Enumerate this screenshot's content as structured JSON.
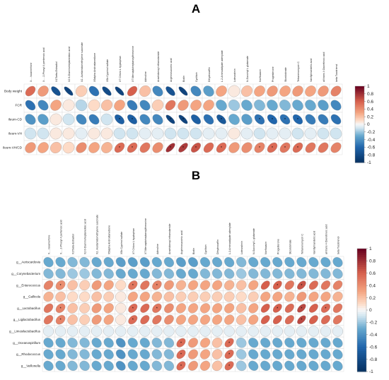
{
  "chart_data": [
    {
      "type": "heatmap",
      "panel_label": "A",
      "columns": [
        "X.....Isoamerfone",
        "X.....2-Phosyl 4 pentenoic acid",
        "X17beta-Estradiol",
        "X2 6-Diaminoheptanedioic acid",
        "X2..Acetamidomethylene succinate",
        "X5alpha Androstanedione",
        "X5b Cyprinol sulfate",
        "X7 Chloro L tryptophan",
        "X7 Mercaptoheptanoylthreonine",
        "Adinoline",
        "Arachidonoyl ethanolamide",
        "Argininosuccinic acid",
        "Biotin",
        "Cyclitoin",
        "Dihydrocaffin",
        "L.2-Aminoadipate adenylate",
        "Loteuralmin",
        "N-Succinyl L glutamate",
        "Norfloxacin",
        "Progesterone",
        "Stizolobinate",
        "Tetranenomycin C",
        "Vanillylmandelic acid",
        "all trans 4 Oxoretinoic acid",
        "beta Tocotrienol"
      ],
      "rows": [
        "Body weight",
        "FCR",
        "Ileum-CD",
        "Ileum-VH",
        "Ileum-VH/CD"
      ],
      "values": [
        [
          0.55,
          0.35,
          -0.75,
          -0.85,
          0.15,
          -0.55,
          -0.8,
          -0.85,
          0.6,
          0.2,
          -0.45,
          -0.75,
          -0.85,
          -0.45,
          -0.35,
          0.3,
          0.05,
          0.2,
          0.3,
          0.35,
          0.3,
          0.35,
          0.3,
          0.35,
          0.45
        ],
        [
          -0.55,
          -0.45,
          0.3,
          0.05,
          -0.15,
          0.1,
          0.2,
          0.3,
          -0.5,
          -0.45,
          0.15,
          0.5,
          0.35,
          0.3,
          0.3,
          -0.3,
          -0.2,
          -0.3,
          -0.25,
          -0.3,
          -0.25,
          -0.3,
          -0.3,
          -0.35,
          -0.45
        ],
        [
          -0.4,
          -0.35,
          0.05,
          -0.1,
          -0.45,
          -0.5,
          -0.1,
          -0.65,
          -0.65,
          -0.45,
          -0.45,
          -0.85,
          -0.85,
          -0.65,
          -0.55,
          -0.7,
          -0.3,
          -0.35,
          -0.55,
          -0.6,
          -0.55,
          -0.6,
          -0.5,
          -0.5,
          -0.55
        ],
        [
          -0.1,
          -0.1,
          0.05,
          0.05,
          -0.05,
          0.05,
          0.05,
          -0.1,
          -0.1,
          -0.05,
          -0.05,
          -0.1,
          -0.1,
          -0.1,
          -0.05,
          -0.05,
          0.05,
          -0.05,
          -0.1,
          -0.05,
          -0.05,
          -0.1,
          -0.05,
          -0.1,
          -0.1
        ],
        [
          0.35,
          0.3,
          0.2,
          0.1,
          0.4,
          0.3,
          0.25,
          0.55,
          0.55,
          0.5,
          0.4,
          0.8,
          0.75,
          0.65,
          0.55,
          0.55,
          0.35,
          0.4,
          0.45,
          0.55,
          0.5,
          0.55,
          0.5,
          0.5,
          0.45
        ]
      ],
      "significant": [
        [
          0,
          0,
          0,
          0,
          0,
          0,
          0,
          0,
          0,
          0,
          0,
          0,
          0,
          0,
          0,
          0,
          0,
          0,
          0,
          0,
          0,
          0,
          0,
          0,
          0
        ],
        [
          0,
          0,
          0,
          0,
          0,
          0,
          0,
          0,
          0,
          0,
          0,
          0,
          0,
          0,
          0,
          0,
          0,
          0,
          0,
          0,
          0,
          0,
          0,
          0,
          0
        ],
        [
          0,
          0,
          0,
          0,
          0,
          0,
          0,
          1,
          1,
          0,
          0,
          1,
          1,
          0,
          0,
          1,
          0,
          0,
          1,
          1,
          1,
          1,
          0,
          0,
          0
        ],
        [
          0,
          0,
          0,
          0,
          0,
          0,
          0,
          0,
          0,
          0,
          0,
          0,
          0,
          0,
          0,
          0,
          0,
          0,
          0,
          0,
          0,
          0,
          0,
          0,
          0
        ],
        [
          0,
          0,
          0,
          0,
          0,
          0,
          0,
          1,
          1,
          0,
          0,
          1,
          1,
          1,
          0,
          1,
          0,
          0,
          1,
          1,
          1,
          1,
          0,
          0,
          0
        ]
      ],
      "colorbar": {
        "min": -1,
        "max": 1,
        "ticks": [
          "1",
          "0.8",
          "0.6",
          "0.4",
          "0.2",
          "0",
          "-0.2",
          "-0.4",
          "-0.6",
          "-0.8",
          "-1"
        ]
      }
    },
    {
      "type": "heatmap",
      "panel_label": "B",
      "columns": [
        "X.....Isoamerfone",
        "X.....2-Phosyl 4 pentenoic acid",
        "X17beta-Estradiol",
        "X2 6-Diaminoheptanedioic acid",
        "X2..Acetamidomethylene succinate",
        "X5alpha Androstanedione",
        "X5b Cyprinol sulfate",
        "X7 Chloro L tryptophan",
        "X7 Mercaptoheptanoylthreonine",
        "Adinoline",
        "Arachidonoyl ethanolamide",
        "Argininosuccinic acid",
        "Biotin",
        "Cyclitoin",
        "Dihydrocaffin",
        "L.2-Aminoadipate adenylate",
        "Loteuralmin",
        "N-Succinyl L glutamate",
        "Norfloxacin",
        "Progesterone",
        "Stizolobinate",
        "Tetranenomycin C",
        "Vanillylmandelic acid",
        "all trans 4 Oxoretinoic acid",
        "beta Tocotrienol"
      ],
      "rows": [
        "g__Aeriscardovia",
        "g__Corynebacterium",
        "g__Enterococcus",
        "g__Gallicola",
        "g__Lactobacillus",
        "g__Ligilactobacillus",
        "g__Limosilactobacillus",
        "g__Oceanospirillum",
        "g__Rhodococcus",
        "g__Veillonella"
      ],
      "values": [
        [
          -0.3,
          -0.3,
          -0.25,
          -0.25,
          -0.3,
          -0.3,
          -0.35,
          -0.35,
          -0.35,
          -0.3,
          -0.3,
          -0.35,
          -0.35,
          -0.3,
          -0.3,
          -0.3,
          -0.25,
          -0.3,
          -0.3,
          -0.3,
          -0.3,
          -0.3,
          -0.3,
          -0.3,
          -0.3
        ],
        [
          -0.25,
          -0.25,
          -0.2,
          -0.2,
          -0.25,
          -0.25,
          -0.3,
          -0.3,
          -0.3,
          -0.25,
          -0.25,
          -0.3,
          -0.3,
          -0.25,
          -0.25,
          -0.25,
          -0.2,
          -0.25,
          -0.25,
          -0.25,
          -0.25,
          -0.25,
          -0.25,
          -0.25,
          -0.25
        ],
        [
          0.45,
          0.4,
          0.2,
          0.15,
          0.35,
          0.3,
          0.1,
          0.5,
          0.5,
          0.45,
          0.35,
          0.25,
          0.3,
          0.3,
          0.3,
          0.25,
          0.2,
          0.3,
          0.6,
          0.6,
          0.5,
          0.65,
          0.55,
          0.5,
          0.45
        ],
        [
          0.25,
          0.2,
          0.1,
          0.1,
          0.2,
          0.15,
          0.05,
          0.3,
          0.3,
          0.25,
          0.2,
          0.15,
          0.15,
          0.15,
          0.15,
          0.15,
          0.1,
          0.15,
          0.3,
          0.3,
          0.25,
          0.35,
          0.3,
          0.3,
          0.25
        ],
        [
          0.5,
          0.45,
          0.2,
          0.15,
          0.35,
          0.3,
          0.05,
          0.55,
          0.55,
          0.5,
          0.4,
          0.3,
          0.3,
          0.3,
          0.3,
          0.3,
          0.2,
          0.3,
          0.6,
          0.6,
          0.55,
          0.7,
          0.6,
          0.55,
          0.5
        ],
        [
          0.5,
          0.45,
          0.2,
          0.15,
          0.35,
          0.3,
          0.05,
          0.55,
          0.55,
          0.5,
          0.4,
          0.3,
          0.3,
          0.3,
          0.3,
          0.3,
          0.2,
          0.3,
          0.6,
          0.6,
          0.55,
          0.7,
          0.6,
          0.55,
          0.5
        ],
        [
          -0.05,
          -0.05,
          -0.05,
          -0.05,
          -0.05,
          -0.05,
          -0.05,
          -0.05,
          -0.05,
          -0.05,
          -0.05,
          -0.05,
          -0.05,
          -0.05,
          -0.05,
          -0.05,
          -0.05,
          -0.05,
          -0.05,
          -0.05,
          -0.05,
          -0.05,
          -0.05,
          -0.05,
          -0.05
        ],
        [
          -0.3,
          -0.3,
          -0.25,
          -0.25,
          -0.3,
          -0.3,
          -0.4,
          -0.3,
          -0.3,
          -0.25,
          -0.25,
          0.55,
          0.35,
          0.3,
          0.2,
          0.55,
          -0.2,
          -0.3,
          -0.3,
          -0.3,
          -0.3,
          -0.3,
          -0.3,
          -0.3,
          -0.3
        ],
        [
          -0.3,
          -0.3,
          -0.25,
          -0.25,
          -0.3,
          -0.3,
          -0.4,
          -0.3,
          -0.3,
          -0.25,
          -0.25,
          0.55,
          0.35,
          0.3,
          0.2,
          0.55,
          -0.2,
          -0.3,
          -0.3,
          -0.3,
          -0.3,
          -0.3,
          -0.3,
          -0.3,
          -0.3
        ],
        [
          -0.3,
          -0.3,
          -0.25,
          -0.25,
          -0.3,
          -0.3,
          -0.4,
          -0.3,
          -0.3,
          -0.25,
          -0.25,
          0.55,
          0.35,
          0.3,
          0.2,
          0.55,
          -0.2,
          -0.3,
          -0.3,
          -0.3,
          -0.3,
          -0.3,
          -0.3,
          -0.3,
          -0.3
        ]
      ],
      "significant": [
        [
          0,
          0,
          0,
          0,
          0,
          0,
          0,
          0,
          0,
          0,
          0,
          0,
          0,
          0,
          0,
          0,
          0,
          0,
          0,
          0,
          0,
          0,
          0,
          0,
          0
        ],
        [
          0,
          0,
          0,
          0,
          0,
          0,
          0,
          0,
          0,
          0,
          0,
          0,
          0,
          0,
          0,
          0,
          0,
          0,
          0,
          0,
          0,
          0,
          0,
          0,
          0
        ],
        [
          0,
          1,
          0,
          0,
          0,
          0,
          0,
          1,
          0,
          1,
          0,
          0,
          0,
          0,
          0,
          0,
          0,
          0,
          0,
          1,
          0,
          1,
          0,
          0,
          0
        ],
        [
          0,
          0,
          0,
          0,
          0,
          0,
          0,
          0,
          0,
          0,
          0,
          0,
          0,
          0,
          0,
          0,
          0,
          0,
          0,
          0,
          0,
          0,
          0,
          0,
          0
        ],
        [
          0,
          1,
          0,
          0,
          0,
          0,
          0,
          1,
          0,
          1,
          0,
          0,
          0,
          0,
          0,
          0,
          0,
          0,
          0,
          1,
          0,
          1,
          0,
          1,
          0
        ],
        [
          0,
          1,
          0,
          0,
          0,
          0,
          0,
          1,
          0,
          0,
          0,
          0,
          0,
          0,
          0,
          0,
          0,
          0,
          0,
          0,
          0,
          1,
          0,
          0,
          0
        ],
        [
          0,
          0,
          0,
          0,
          0,
          0,
          0,
          0,
          0,
          0,
          0,
          0,
          0,
          0,
          0,
          0,
          0,
          0,
          0,
          0,
          0,
          0,
          0,
          0,
          0
        ],
        [
          0,
          0,
          0,
          0,
          0,
          0,
          0,
          0,
          0,
          0,
          0,
          1,
          0,
          0,
          0,
          1,
          0,
          0,
          0,
          0,
          0,
          0,
          0,
          0,
          0
        ],
        [
          0,
          0,
          0,
          0,
          0,
          0,
          0,
          0,
          0,
          0,
          0,
          1,
          0,
          0,
          0,
          1,
          0,
          0,
          0,
          0,
          0,
          0,
          0,
          0,
          0
        ],
        [
          0,
          0,
          0,
          0,
          0,
          0,
          0,
          0,
          0,
          0,
          0,
          1,
          0,
          0,
          0,
          1,
          0,
          0,
          0,
          0,
          0,
          0,
          0,
          0,
          0
        ]
      ],
      "colorbar": {
        "min": -1,
        "max": 1,
        "ticks": [
          "1",
          "0.8",
          "0.6",
          "0.4",
          "0.2",
          "0",
          "-0.2",
          "-0.4",
          "-0.6",
          "-0.8",
          "-1"
        ]
      }
    }
  ]
}
